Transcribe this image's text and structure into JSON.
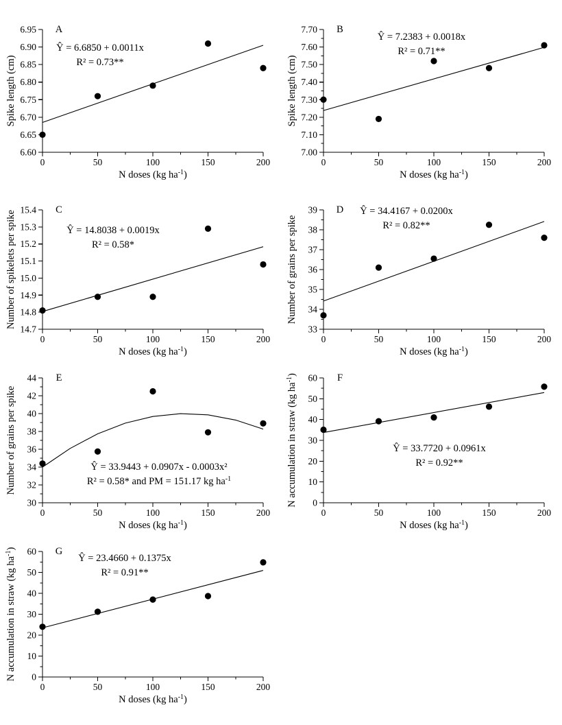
{
  "figure": {
    "background": "#ffffff",
    "ink_color": "#000000",
    "panels": [
      "A",
      "B",
      "C",
      "D",
      "E",
      "F",
      "G"
    ]
  },
  "chart_data": [
    {
      "panel_label": "A",
      "type": "scatter",
      "xlabel": "N doses (kg ha⁻¹)",
      "ylabel": "Spike length (cm)",
      "x": [
        0,
        50,
        100,
        150,
        200
      ],
      "y": [
        6.65,
        6.76,
        6.79,
        6.91,
        6.84
      ],
      "xlim": [
        0,
        200
      ],
      "ylim": [
        6.6,
        6.95
      ],
      "xticks": [
        0,
        50,
        100,
        150,
        200
      ],
      "xtick_labels": [
        "0",
        "50",
        "100",
        "150",
        "200"
      ],
      "x_minor_step": 25,
      "yticks": [
        6.6,
        6.65,
        6.7,
        6.75,
        6.8,
        6.85,
        6.9,
        6.95
      ],
      "ytick_labels": [
        "6.60",
        "6.65",
        "6.70",
        "6.75",
        "6.80",
        "6.85",
        "6.90",
        "6.95"
      ],
      "y_minor_step": null,
      "fit_line": {
        "x": [
          0,
          200
        ],
        "y": [
          6.685,
          6.905
        ]
      },
      "equation": "Ŷ = 6.6850 + 0.0011x",
      "r_squared": "R² = 0.73**",
      "marker_color": "#000000"
    },
    {
      "panel_label": "B",
      "type": "scatter",
      "xlabel": "N doses (kg ha⁻¹)",
      "ylabel": "Spike length (cm)",
      "x": [
        0,
        50,
        100,
        150,
        200
      ],
      "y": [
        7.3,
        7.19,
        7.52,
        7.48,
        7.61
      ],
      "xlim": [
        0,
        200
      ],
      "ylim": [
        7.0,
        7.7
      ],
      "xticks": [
        0,
        50,
        100,
        150,
        200
      ],
      "xtick_labels": [
        "0",
        "50",
        "100",
        "150",
        "200"
      ],
      "x_minor_step": 25,
      "yticks": [
        7.0,
        7.1,
        7.2,
        7.3,
        7.4,
        7.5,
        7.6,
        7.7
      ],
      "ytick_labels": [
        "7.00",
        "7.10",
        "7.20",
        "7.30",
        "7.40",
        "7.50",
        "7.60",
        "7.70"
      ],
      "y_minor_step": 0.05,
      "fit_line": {
        "x": [
          0,
          200
        ],
        "y": [
          7.2383,
          7.5983
        ]
      },
      "equation": "Ŷ = 7.2383 + 0.0018x",
      "r_squared": "R² = 0.71**",
      "marker_color": "#000000"
    },
    {
      "panel_label": "C",
      "type": "scatter",
      "xlabel": "N doses (kg ha⁻¹)",
      "ylabel": "Number of spikelets per spike",
      "x": [
        0,
        50,
        100,
        150,
        200
      ],
      "y": [
        14.81,
        14.89,
        14.89,
        15.29,
        15.08
      ],
      "xlim": [
        0,
        200
      ],
      "ylim": [
        14.7,
        15.4
      ],
      "xticks": [
        0,
        50,
        100,
        150,
        200
      ],
      "xtick_labels": [
        "0",
        "50",
        "100",
        "150",
        "200"
      ],
      "x_minor_step": 25,
      "yticks": [
        14.7,
        14.8,
        14.9,
        15.0,
        15.1,
        15.2,
        15.3,
        15.4
      ],
      "ytick_labels": [
        "14.7",
        "14.8",
        "14.9",
        "15.0",
        "15.1",
        "15.2",
        "15.3",
        "15.4"
      ],
      "y_minor_step": null,
      "fit_line": {
        "x": [
          0,
          200
        ],
        "y": [
          14.8038,
          15.1838
        ]
      },
      "equation": "Ŷ = 14.8038 + 0.0019x",
      "r_squared": "R² = 0.58*",
      "marker_color": "#000000"
    },
    {
      "panel_label": "D",
      "type": "scatter",
      "xlabel": "N doses (kg ha⁻¹)",
      "ylabel": "Number of grains per spike",
      "x": [
        0,
        50,
        100,
        150,
        200
      ],
      "y": [
        33.7,
        36.1,
        36.55,
        38.25,
        37.6
      ],
      "xlim": [
        0,
        200
      ],
      "ylim": [
        33,
        39
      ],
      "xticks": [
        0,
        50,
        100,
        150,
        200
      ],
      "xtick_labels": [
        "0",
        "50",
        "100",
        "150",
        "200"
      ],
      "x_minor_step": 25,
      "yticks": [
        33,
        34,
        35,
        36,
        37,
        38,
        39
      ],
      "ytick_labels": [
        "33",
        "34",
        "35",
        "36",
        "37",
        "38",
        "39"
      ],
      "y_minor_step": 0.5,
      "fit_line": {
        "x": [
          0,
          200
        ],
        "y": [
          34.4167,
          38.4167
        ]
      },
      "equation": "Ŷ = 34.4167 + 0.0200x",
      "r_squared": "R² = 0.82**",
      "marker_color": "#000000"
    },
    {
      "panel_label": "E",
      "type": "scatter",
      "xlabel": "N doses (kg ha⁻¹)",
      "ylabel": "Number of grains per spike",
      "x": [
        0,
        50,
        100,
        150,
        200
      ],
      "y": [
        34.4,
        35.75,
        42.5,
        37.9,
        38.9
      ],
      "xlim": [
        0,
        200
      ],
      "ylim": [
        30,
        44
      ],
      "xticks": [
        0,
        50,
        100,
        150,
        200
      ],
      "xtick_labels": [
        "0",
        "50",
        "100",
        "150",
        "200"
      ],
      "x_minor_step": 25,
      "yticks": [
        30,
        32,
        34,
        36,
        38,
        40,
        42,
        44
      ],
      "ytick_labels": [
        "30",
        "32",
        "34",
        "36",
        "38",
        "40",
        "42",
        "44"
      ],
      "y_minor_step": 1,
      "fit_line": {
        "x": [
          0,
          25,
          50,
          75,
          100,
          125,
          150,
          175,
          200
        ],
        "y": [
          34.0,
          36.09,
          37.73,
          38.93,
          39.68,
          39.99,
          39.86,
          39.28,
          38.26
        ]
      },
      "equation": "Ŷ = 33.9443 + 0.0907x - 0.0003x²",
      "r_squared": "R² = 0.58* and PM = 151.17 kg ha⁻¹",
      "marker_color": "#000000"
    },
    {
      "panel_label": "F",
      "type": "scatter",
      "xlabel": "N doses (kg ha⁻¹)",
      "ylabel": "N accumulation in straw (kg ha⁻¹)",
      "x": [
        0,
        50,
        100,
        150,
        200
      ],
      "y": [
        35.1,
        39.2,
        41.0,
        46.2,
        55.8
      ],
      "xlim": [
        0,
        200
      ],
      "ylim": [
        0,
        60
      ],
      "xticks": [
        0,
        50,
        100,
        150,
        200
      ],
      "xtick_labels": [
        "0",
        "50",
        "100",
        "150",
        "200"
      ],
      "x_minor_step": 25,
      "yticks": [
        0,
        10,
        20,
        30,
        40,
        50,
        60
      ],
      "ytick_labels": [
        "0",
        "10",
        "20",
        "30",
        "40",
        "50",
        "60"
      ],
      "y_minor_step": 5,
      "fit_line": {
        "x": [
          0,
          200
        ],
        "y": [
          33.772,
          52.992
        ]
      },
      "equation": "Ŷ = 33.7720 + 0.0961x",
      "r_squared": "R² = 0.92**",
      "marker_color": "#000000"
    },
    {
      "panel_label": "G",
      "type": "scatter",
      "xlabel": "N doses (kg ha⁻¹)",
      "ylabel": "N accumulation in straw (kg ha⁻¹)",
      "x": [
        0,
        50,
        100,
        150,
        200
      ],
      "y": [
        24.0,
        31.2,
        37.0,
        38.7,
        54.8
      ],
      "xlim": [
        0,
        200
      ],
      "ylim": [
        0,
        60
      ],
      "xticks": [
        0,
        50,
        100,
        150,
        200
      ],
      "xtick_labels": [
        "0",
        "50",
        "100",
        "150",
        "200"
      ],
      "x_minor_step": 25,
      "yticks": [
        0,
        10,
        20,
        30,
        40,
        50,
        60
      ],
      "ytick_labels": [
        "0",
        "10",
        "20",
        "30",
        "40",
        "50",
        "60"
      ],
      "y_minor_step": 5,
      "fit_line": {
        "x": [
          0,
          200
        ],
        "y": [
          23.466,
          50.966
        ]
      },
      "equation": "Ŷ = 23.4660 + 0.1375x",
      "r_squared": "R² = 0.91**",
      "marker_color": "#000000"
    }
  ]
}
